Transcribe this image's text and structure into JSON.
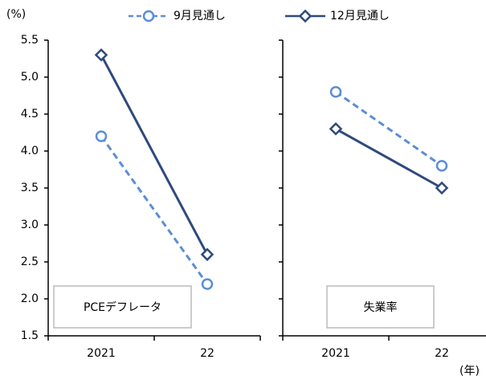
{
  "chart_data": {
    "type": "line",
    "y_label": "(%)",
    "x_label": "(年)",
    "ylim": [
      1.5,
      5.5
    ],
    "yticks": [
      1.5,
      2.0,
      2.5,
      3.0,
      3.5,
      4.0,
      4.5,
      5.0,
      5.5
    ],
    "categories": [
      "2021",
      "22"
    ],
    "legend": [
      {
        "name": "9月見通し",
        "color": "#5b8ed6",
        "dash": true,
        "marker": "circle"
      },
      {
        "name": "12月見通し",
        "color": "#2e4a7d",
        "dash": false,
        "marker": "diamond"
      }
    ],
    "panels": [
      {
        "label": "PCEデフレータ",
        "series": [
          {
            "values": [
              4.2,
              2.2
            ]
          },
          {
            "values": [
              5.3,
              2.6
            ]
          }
        ]
      },
      {
        "label": "失業率",
        "series": [
          {
            "values": [
              4.8,
              3.8
            ]
          },
          {
            "values": [
              4.3,
              3.5
            ]
          }
        ]
      }
    ]
  }
}
